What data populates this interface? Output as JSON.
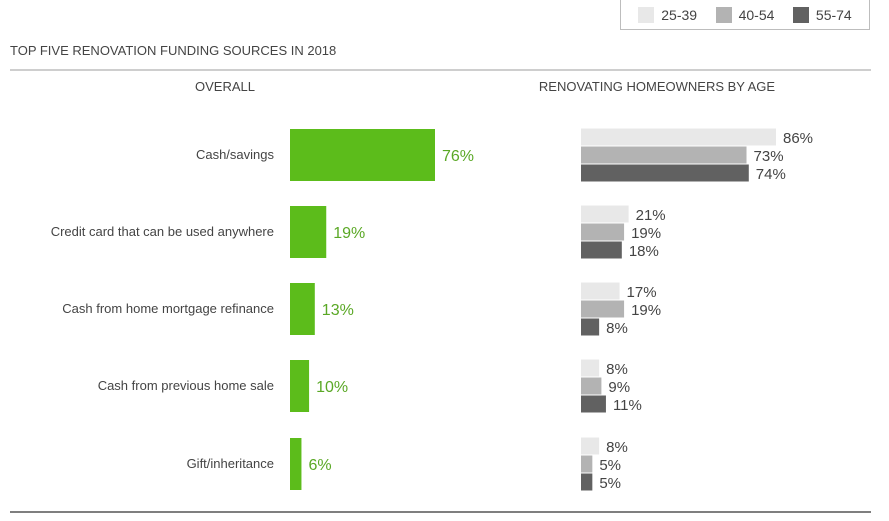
{
  "chart_data": {
    "type": "bar",
    "title": "TOP FIVE RENOVATION FUNDING SOURCES IN 2018",
    "categories": [
      "Cash/savings",
      "Credit card that can be used anywhere",
      "Cash from home mortgage refinance",
      "Cash from previous home sale",
      "Gift/inheritance"
    ],
    "panels": [
      {
        "heading": "OVERALL",
        "series": [
          {
            "values": [
              76,
              19,
              13,
              10,
              6
            ],
            "labels": [
              "76%",
              "19%",
              "13%",
              "10%",
              "6%"
            ],
            "color": "#5cbc1b"
          }
        ]
      },
      {
        "heading": "RENOVATING HOMEOWNERS BY AGE",
        "series": [
          {
            "name": "25-39",
            "values": [
              86,
              21,
              17,
              8,
              8
            ],
            "labels": [
              "86%",
              "21%",
              "17%",
              "8%",
              "8%"
            ],
            "color": "#e8e8e8"
          },
          {
            "name": "40-54",
            "values": [
              73,
              19,
              19,
              9,
              5
            ],
            "labels": [
              "73%",
              "19%",
              "19%",
              "9%",
              "5%"
            ],
            "color": "#b3b3b3"
          },
          {
            "name": "55-74",
            "values": [
              74,
              18,
              8,
              11,
              5
            ],
            "labels": [
              "74%",
              "18%",
              "8%",
              "11%",
              "5%"
            ],
            "color": "#616161"
          }
        ]
      }
    ],
    "legend": {
      "placement": "top-right",
      "entries": [
        "25-39",
        "40-54",
        "55-74"
      ]
    },
    "colors": {
      "overall_bar": "#5cbc1b",
      "overall_label": "#5aa825",
      "age_25_39": "#e8e8e8",
      "age_40_54": "#b3b3b3",
      "age_55_74": "#616161",
      "text": "#444444",
      "rule": "#9e9e9e"
    },
    "grid": false
  }
}
